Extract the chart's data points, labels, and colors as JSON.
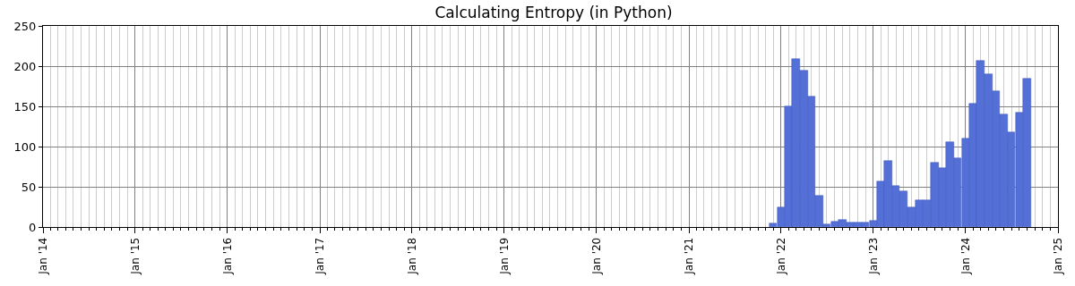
{
  "chart_data": {
    "type": "bar",
    "title": "Calculating Entropy (in Python)",
    "x": [
      "2021-12",
      "2022-01",
      "2022-02",
      "2022-03",
      "2022-04",
      "2022-05",
      "2022-06",
      "2022-07",
      "2022-08",
      "2022-09",
      "2022-10",
      "2022-11",
      "2022-12",
      "2023-01",
      "2023-02",
      "2023-03",
      "2023-04",
      "2023-05",
      "2023-06",
      "2023-07",
      "2023-08",
      "2023-09",
      "2023-10",
      "2023-11",
      "2023-12",
      "2024-01",
      "2024-02",
      "2024-03",
      "2024-04",
      "2024-05",
      "2024-06",
      "2024-07",
      "2024-08",
      "2024-09"
    ],
    "values": [
      5,
      24,
      150,
      209,
      195,
      162,
      39,
      3,
      7,
      9,
      6,
      6,
      6,
      8,
      57,
      82,
      51,
      44,
      25,
      33,
      33,
      80,
      73,
      106,
      86,
      110,
      153,
      207,
      190,
      169,
      140,
      118,
      142,
      185
    ],
    "color": "#5470d6",
    "xlim": [
      "2014-01",
      "2025-01"
    ],
    "xticks": [
      {
        "value": "2014-01",
        "label": "Jan '14"
      },
      {
        "value": "2015-01",
        "label": "Jan '15"
      },
      {
        "value": "2016-01",
        "label": "Jan '16"
      },
      {
        "value": "2017-01",
        "label": "Jan '17"
      },
      {
        "value": "2018-01",
        "label": "Jan '18"
      },
      {
        "value": "2019-01",
        "label": "Jan '19"
      },
      {
        "value": "2020-01",
        "label": "Jan '20"
      },
      {
        "value": "2021-01",
        "label": "Jan '21"
      },
      {
        "value": "2022-01",
        "label": "Jan '22"
      },
      {
        "value": "2023-01",
        "label": "Jan '23"
      },
      {
        "value": "2024-01",
        "label": "Jan '24"
      },
      {
        "value": "2025-01",
        "label": "Jan '25"
      }
    ],
    "ylim": [
      0,
      250
    ],
    "yticks": [
      0,
      50,
      100,
      150,
      200,
      250
    ],
    "grid": true
  }
}
